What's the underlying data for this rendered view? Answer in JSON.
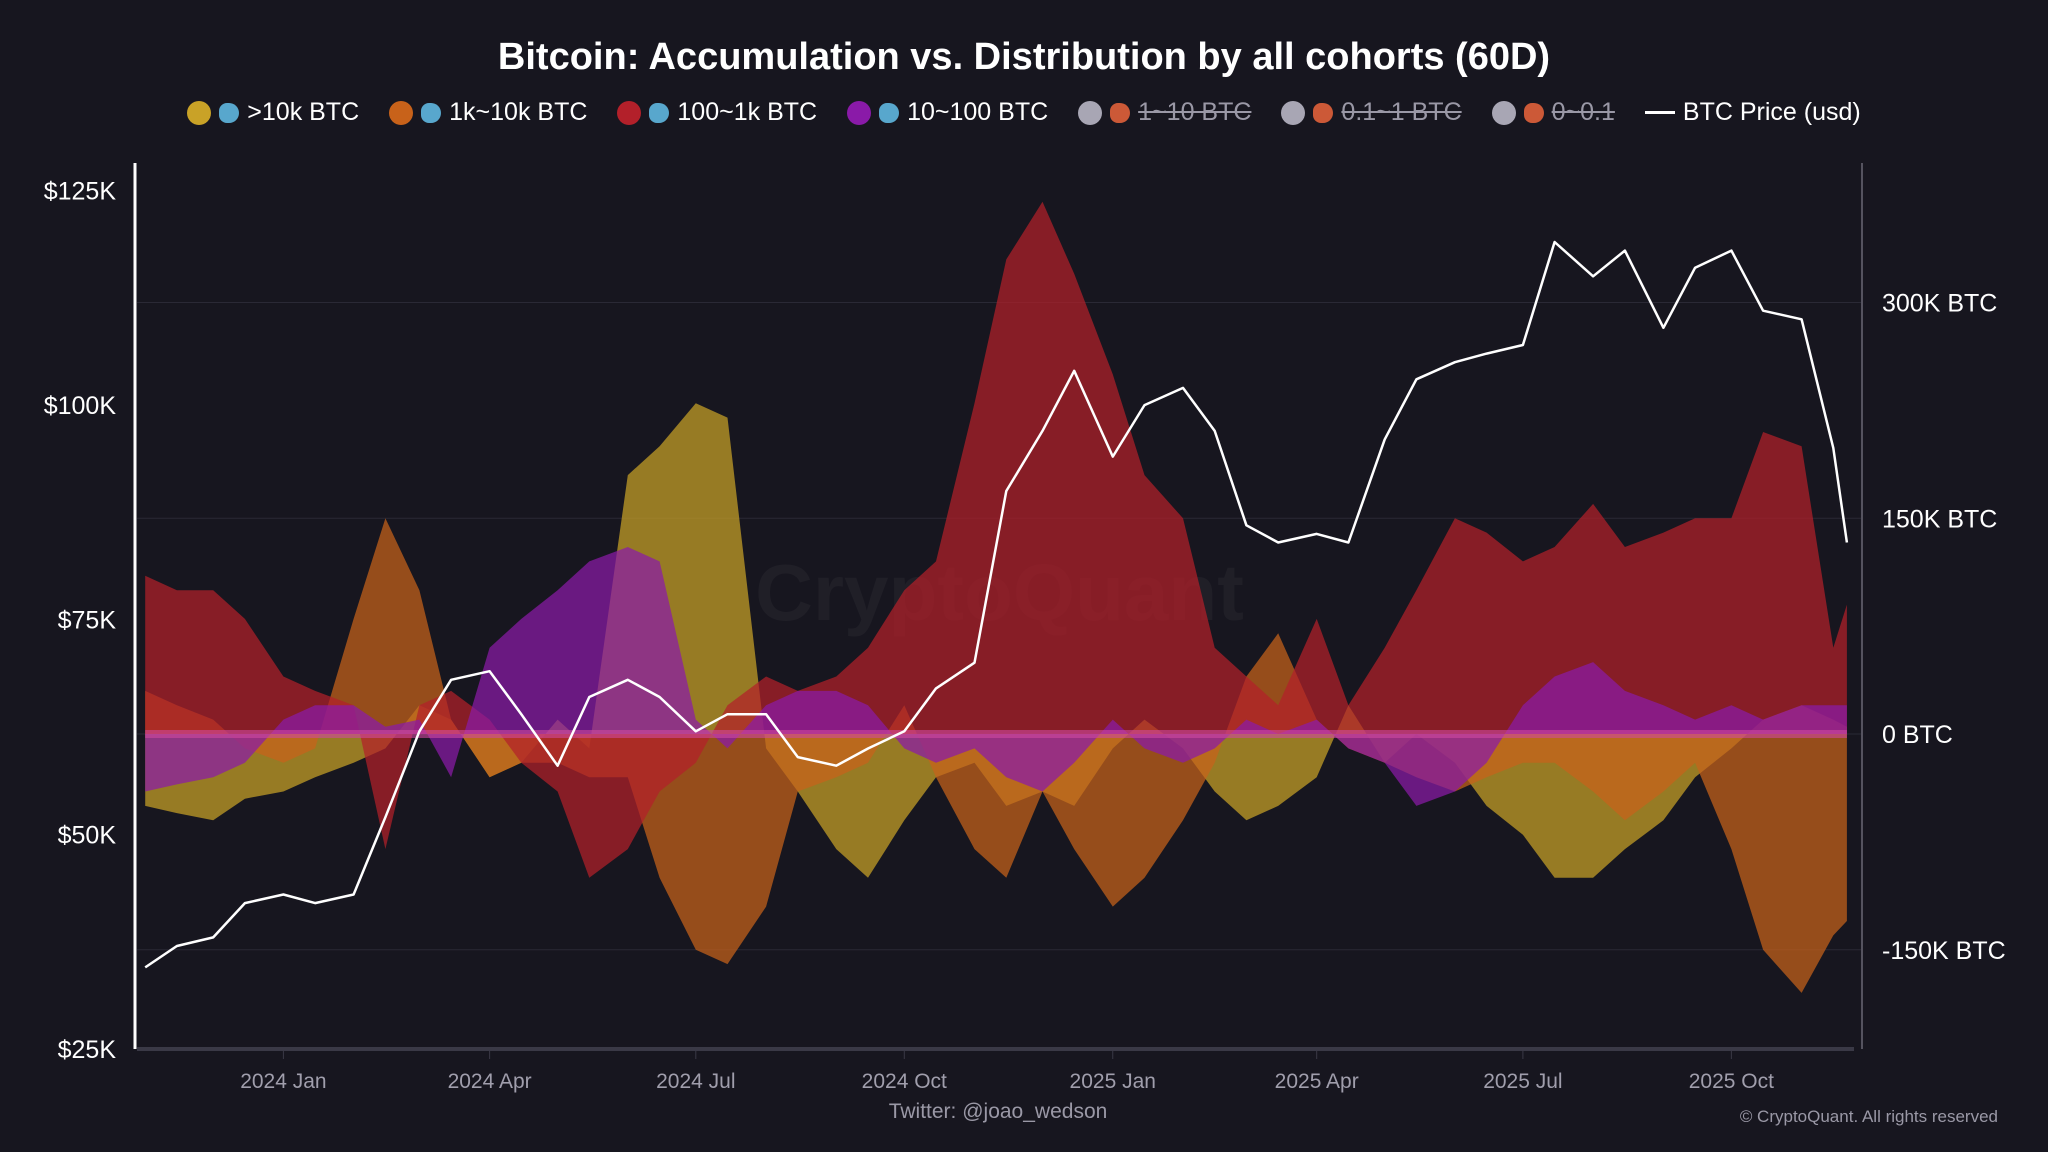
{
  "chart_data": {
    "type": "area",
    "title": "Bitcoin: Accumulation vs. Distribution by all cohorts (60D)",
    "x_tick_labels": [
      "2024 Jan",
      "2024 Apr",
      "2024 Jul",
      "2024 Oct",
      "2025 Jan",
      "2025 Apr",
      "2025 Jul",
      "2025 Oct"
    ],
    "x_tick_dates": [
      "2024-01-01",
      "2024-04-01",
      "2024-07-01",
      "2024-10-01",
      "2025-01-01",
      "2025-04-01",
      "2025-07-01",
      "2025-10-01"
    ],
    "left_axis": {
      "ticks": [
        125000,
        100000,
        75000,
        50000,
        25000
      ],
      "tick_labels": [
        "$125K",
        "$100K",
        "$75K",
        "$50K",
        "$25K"
      ],
      "range": [
        25000,
        128200
      ]
    },
    "right_axis": {
      "ticks": [
        300000,
        150000,
        0,
        -150000
      ],
      "tick_labels": [
        "300K BTC",
        "150K BTC",
        "0 BTC",
        "-150K BTC"
      ],
      "range": [
        -219000,
        397000
      ]
    },
    "grid": true,
    "legend_placement": "top",
    "legend": [
      {
        "label": ">10k BTC",
        "color": "#c9a227",
        "icon": "whale-icon",
        "enabled": true
      },
      {
        "label": "1k~10k BTC",
        "color": "#c8621a",
        "icon": "shark-icon",
        "enabled": true
      },
      {
        "label": "100~1k BTC",
        "color": "#b3202a",
        "icon": "dolphin-icon",
        "enabled": true
      },
      {
        "label": "10~100 BTC",
        "color": "#8a1aa8",
        "icon": "fish-icon",
        "enabled": true
      },
      {
        "label": "1~10 BTC",
        "color": "#a8a6b4",
        "icon": "octopus-icon",
        "enabled": false
      },
      {
        "label": "0.1~1 BTC",
        "color": "#a8a6b4",
        "icon": "crab-icon",
        "enabled": false
      },
      {
        "label": "0~0.1",
        "color": "#a8a6b4",
        "icon": "shrimp-icon",
        "enabled": false
      },
      {
        "label": "BTC Price (usd)",
        "color": "#ffffff",
        "icon": "line",
        "enabled": true
      }
    ],
    "x": [
      "2023-11-01",
      "2023-11-15",
      "2023-12-01",
      "2023-12-15",
      "2024-01-01",
      "2024-01-15",
      "2024-02-01",
      "2024-02-15",
      "2024-03-01",
      "2024-03-15",
      "2024-04-01",
      "2024-04-15",
      "2024-05-01",
      "2024-05-15",
      "2024-06-01",
      "2024-06-15",
      "2024-07-01",
      "2024-07-15",
      "2024-08-01",
      "2024-08-15",
      "2024-09-01",
      "2024-09-15",
      "2024-10-01",
      "2024-10-15",
      "2024-11-01",
      "2024-11-15",
      "2024-12-01",
      "2024-12-15",
      "2025-01-01",
      "2025-01-15",
      "2025-02-01",
      "2025-02-15",
      "2025-03-01",
      "2025-03-15",
      "2025-04-01",
      "2025-04-15",
      "2025-05-01",
      "2025-05-15",
      "2025-06-01",
      "2025-06-15",
      "2025-07-01",
      "2025-07-15",
      "2025-08-01",
      "2025-08-15",
      "2025-09-01",
      "2025-09-15",
      "2025-10-01",
      "2025-10-15",
      "2025-11-01",
      "2025-11-15",
      "2025-11-21"
    ],
    "series": [
      {
        "name": ">10k BTC",
        "values": [
          -50000,
          -55000,
          -60000,
          -45000,
          -40000,
          -30000,
          -20000,
          -10000,
          20000,
          10000,
          -30000,
          -20000,
          10000,
          -10000,
          180000,
          200000,
          230000,
          220000,
          -10000,
          -40000,
          -80000,
          -100000,
          -60000,
          -30000,
          -20000,
          -50000,
          -40000,
          -50000,
          -10000,
          10000,
          -10000,
          -40000,
          -60000,
          -50000,
          -30000,
          20000,
          -20000,
          0,
          -20000,
          -50000,
          -70000,
          -100000,
          -100000,
          -80000,
          -60000,
          -30000,
          -10000,
          10000,
          20000,
          10000,
          5000
        ]
      },
      {
        "name": "1k~10k BTC",
        "values": [
          30000,
          20000,
          10000,
          -10000,
          -20000,
          -10000,
          80000,
          150000,
          100000,
          10000,
          -30000,
          -20000,
          -20000,
          -30000,
          -30000,
          -100000,
          -150000,
          -160000,
          -120000,
          -40000,
          -30000,
          -20000,
          20000,
          -30000,
          -80000,
          -100000,
          -40000,
          -80000,
          -120000,
          -100000,
          -60000,
          -20000,
          40000,
          70000,
          10000,
          -10000,
          -20000,
          -30000,
          -40000,
          -30000,
          -20000,
          -20000,
          -40000,
          -60000,
          -40000,
          -20000,
          -80000,
          -150000,
          -180000,
          -140000,
          -130000
        ]
      },
      {
        "name": "100~1k BTC",
        "values": [
          110000,
          100000,
          100000,
          80000,
          40000,
          30000,
          20000,
          -80000,
          20000,
          30000,
          10000,
          -20000,
          -40000,
          -100000,
          -80000,
          -40000,
          -20000,
          20000,
          40000,
          30000,
          40000,
          60000,
          100000,
          120000,
          230000,
          330000,
          370000,
          320000,
          250000,
          180000,
          150000,
          60000,
          40000,
          20000,
          80000,
          20000,
          60000,
          100000,
          150000,
          140000,
          120000,
          130000,
          160000,
          130000,
          140000,
          150000,
          150000,
          210000,
          200000,
          60000,
          90000
        ]
      },
      {
        "name": "10~100 BTC",
        "values": [
          -40000,
          -35000,
          -30000,
          -20000,
          10000,
          20000,
          20000,
          5000,
          10000,
          -30000,
          60000,
          80000,
          100000,
          120000,
          130000,
          120000,
          10000,
          -10000,
          20000,
          30000,
          30000,
          20000,
          -10000,
          -20000,
          -10000,
          -30000,
          -40000,
          -20000,
          10000,
          -10000,
          -20000,
          -10000,
          10000,
          0,
          10000,
          -10000,
          -20000,
          -50000,
          -40000,
          -20000,
          20000,
          40000,
          50000,
          30000,
          20000,
          10000,
          20000,
          10000,
          20000,
          20000,
          20000
        ]
      },
      {
        "name": "BTC Price (usd)",
        "axis": "left",
        "values": [
          34500,
          37000,
          38000,
          42000,
          43000,
          42000,
          43000,
          52000,
          62000,
          68000,
          69000,
          64000,
          58000,
          66000,
          68000,
          66000,
          62000,
          64000,
          64000,
          59000,
          58000,
          60000,
          62000,
          67000,
          70000,
          90000,
          97000,
          104000,
          94000,
          100000,
          102000,
          97000,
          86000,
          84000,
          85000,
          84000,
          96000,
          103000,
          105000,
          106000,
          107000,
          119000,
          115000,
          118000,
          109000,
          116000,
          118000,
          111000,
          110000,
          95000,
          84000
        ]
      }
    ]
  },
  "watermark": "CryptoQuant",
  "footer": {
    "credit": "Twitter: @joao_wedson",
    "copyright": "© CryptoQuant. All rights reserved"
  }
}
